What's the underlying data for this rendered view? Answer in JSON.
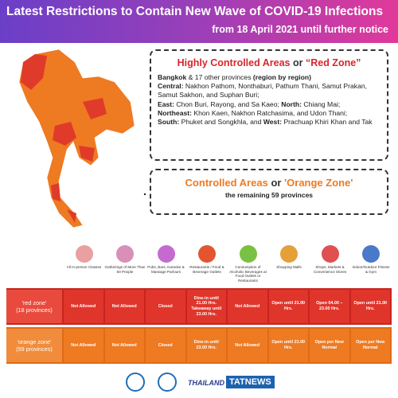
{
  "header": {
    "title": "Latest Restrictions to Contain New Wave of COVID-19 Infections",
    "subtitle": "from 18 April 2021 until further notice"
  },
  "red_zone": {
    "heading": [
      "Highly Controlled Areas",
      "or",
      "“Red Zone”"
    ],
    "body": [
      "Bangkok",
      " & 17 other provinces ",
      "(region by region)",
      "Central:",
      " Nakhon Pathom, Nonthaburi, Pathum Thani, Samut Prakan, Samut Sakhon, and Suphan Buri;",
      "East:",
      " Chon Buri, Rayong, and Sa Kaeo; ",
      "North:",
      " Chiang Mai;",
      "Northeast:",
      " Khon Kaen, Nakhon Ratchasima, and Udon Thani;",
      "South:",
      " Phuket and Songkhla, and ",
      "West:",
      " Prachuap Khiri Khan and Tak"
    ]
  },
  "orange_zone": {
    "heading": [
      "Controlled Areas",
      "or",
      "'Orange Zone'"
    ],
    "subheading": "the remaining 59 provinces"
  },
  "table": {
    "columns": [
      "All In-person Classes",
      "Gatherings of More Than 50 People",
      "Pubs, Bars, Karaoke & Massage Parlours",
      "Restaurants / Food & Beverage Outlets",
      "Consumption of Alcoholic Beverages at Food Outlets or Restaurants",
      "Shopping Malls",
      "Shops, Markets & Convenience Stores",
      "Indoor/Outdoor Fitness & Gym"
    ],
    "rows": [
      {
        "label": [
          "'red zone'",
          "(18 provinces)"
        ],
        "cells": [
          "Not Allowed",
          "Not Allowed",
          "Closed",
          "Dine-in until 21.00 Hrs. Takeaway until 23.00 Hrs.",
          "Not Allowed",
          "Open until 21.00 Hrs.",
          "Open 04.00 – 23.00 Hrs.",
          "Open until 21.00 Hrs."
        ]
      },
      {
        "label": [
          "'orange zone'",
          "(59 provinces)"
        ],
        "cells": [
          "Not Allowed",
          "Not Allowed",
          "Closed",
          "Dine-in until 23.00 Hrs.",
          "Not Allowed",
          "Open until 21.00 Hrs.",
          "Open per New Normal",
          "Open per New Normal"
        ]
      }
    ]
  },
  "footer": {
    "logos": [
      "THAILAND",
      "TATNEWS"
    ]
  }
}
